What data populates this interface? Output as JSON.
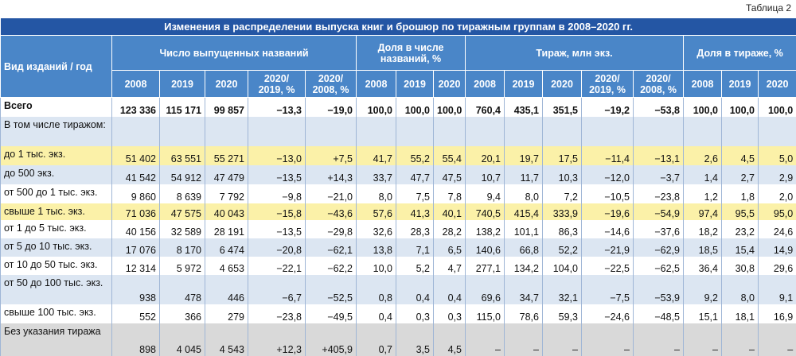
{
  "caption": "Таблица 2",
  "title": "Изменения в распределении выпуска книг и брошюр по тиражным группам в 2008–2020 гг.",
  "header": {
    "row_label": "Вид изданий / год",
    "groups": [
      {
        "label": "Число выпущенных названий",
        "columns": [
          "2008",
          "2019",
          "2020",
          "2020/ 2019, %",
          "2020/ 2008, %"
        ]
      },
      {
        "label": "Доля в числе названий, %",
        "columns": [
          "2008",
          "2019",
          "2020"
        ]
      },
      {
        "label": "Тираж, млн экз.",
        "columns": [
          "2008",
          "2019",
          "2020",
          "2020/ 2019, %",
          "2020/ 2008, %"
        ]
      },
      {
        "label": "Доля в тираже, %",
        "columns": [
          "2008",
          "2019",
          "2020"
        ]
      }
    ]
  },
  "rows": [
    {
      "label": "Всего",
      "cells": [
        "123 336",
        "115 171",
        "99 857",
        "−13,3",
        "−19,0",
        "100,0",
        "100,0",
        "100,0",
        "760,4",
        "435,1",
        "351,5",
        "−19,2",
        "−53,8",
        "100,0",
        "100,0",
        "100,0"
      ]
    },
    {
      "label": "В том числе тиражом:",
      "cells": []
    },
    {
      "label": "до 1 тыс. экз.",
      "cells": [
        "51 402",
        "63 551",
        "55 271",
        "−13,0",
        "+7,5",
        "41,7",
        "55,2",
        "55,4",
        "20,1",
        "19,7",
        "17,5",
        "−11,4",
        "−13,1",
        "2,6",
        "4,5",
        "5,0"
      ]
    },
    {
      "label": "до 500 экз.",
      "cells": [
        "41 542",
        "54 912",
        "47 479",
        "−13,5",
        "+14,3",
        "33,7",
        "47,7",
        "47,5",
        "10,7",
        "11,7",
        "10,3",
        "−12,0",
        "−3,7",
        "1,4",
        "2,7",
        "2,9"
      ]
    },
    {
      "label": "от 500 до 1 тыс. экз.",
      "cells": [
        "9 860",
        "8 639",
        "7 792",
        "−9,8",
        "−21,0",
        "8,0",
        "7,5",
        "7,8",
        "9,4",
        "8,0",
        "7,2",
        "−10,5",
        "−23,8",
        "1,2",
        "1,8",
        "2,0"
      ]
    },
    {
      "label": "свыше 1 тыс. экз.",
      "cells": [
        "71 036",
        "47 575",
        "40 043",
        "−15,8",
        "−43,6",
        "57,6",
        "41,3",
        "40,1",
        "740,5",
        "415,4",
        "333,9",
        "−19,6",
        "−54,9",
        "97,4",
        "95,5",
        "95,0"
      ]
    },
    {
      "label": "от 1 до 5 тыс. экз.",
      "cells": [
        "40 156",
        "32 589",
        "28 191",
        "−13,5",
        "−29,8",
        "32,6",
        "28,3",
        "28,2",
        "138,2",
        "101,1",
        "86,3",
        "−14,6",
        "−37,6",
        "18,2",
        "23,2",
        "24,6"
      ]
    },
    {
      "label": "от 5 до 10 тыс. экз.",
      "cells": [
        "17 076",
        "8 170",
        "6 474",
        "−20,8",
        "−62,1",
        "13,8",
        "7,1",
        "6,5",
        "140,6",
        "66,8",
        "52,2",
        "−21,9",
        "−62,9",
        "18,5",
        "15,4",
        "14,9"
      ]
    },
    {
      "label": "от 10 до 50 тыс. экз.",
      "cells": [
        "12 314",
        "5 972",
        "4 653",
        "−22,1",
        "−62,2",
        "10,0",
        "5,2",
        "4,7",
        "277,1",
        "134,2",
        "104,0",
        "−22,5",
        "−62,5",
        "36,4",
        "30,8",
        "29,6"
      ]
    },
    {
      "label": "от 50 до 100 тыс. экз.",
      "cells": [
        "938",
        "478",
        "446",
        "−6,7",
        "−52,5",
        "0,8",
        "0,4",
        "0,4",
        "69,6",
        "34,7",
        "32,1",
        "−7,5",
        "−53,9",
        "9,2",
        "8,0",
        "9,1"
      ]
    },
    {
      "label": "свыше 100 тыс. экз.",
      "cells": [
        "552",
        "366",
        "279",
        "−23,8",
        "−49,5",
        "0,4",
        "0,3",
        "0,3",
        "115,0",
        "78,6",
        "59,3",
        "−24,6",
        "−48,5",
        "15,1",
        "18,1",
        "16,9"
      ]
    },
    {
      "label": "Без указания тиража",
      "cells": [
        "898",
        "4 045",
        "4 543",
        "+12,3",
        "+405,9",
        "0,7",
        "3,5",
        "4,5",
        "–",
        "–",
        "–",
        "–",
        "–",
        "–",
        "–",
        "–"
      ]
    }
  ]
}
